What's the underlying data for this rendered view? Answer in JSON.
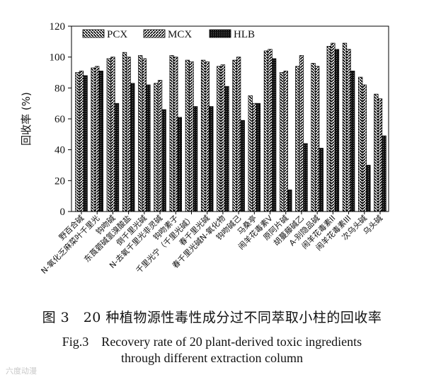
{
  "chart_data": {
    "type": "bar",
    "ylabel": "回收率 (%)",
    "ylim": [
      0,
      120
    ],
    "yticks": [
      0,
      20,
      40,
      60,
      80,
      100,
      120
    ],
    "legend_position": "top",
    "grid": false,
    "categories": [
      "野百合碱",
      "N-氧化乏麻菜叶千里光",
      "钩吻碱",
      "东莨菪碱氢溴酸盐",
      "倒千里光碱",
      "N-去氧千里光非灵碱",
      "钩吻素子",
      "千里光宁（千里光碱）",
      "春千里光碱",
      "春千里光碱N-氧化物",
      "钩吻碱己",
      "马桑亭",
      "闹羊花毒素V",
      "原阿片碱",
      "胡蔓藤碱乙",
      "A-别隐品碱",
      "闹羊花毒素II",
      "闹羊花毒素III",
      "次乌头碱",
      "乌头碱"
    ],
    "series": [
      {
        "name": "PCX",
        "values": [
          90,
          93,
          99,
          103,
          101,
          83,
          101,
          98,
          98,
          94,
          98,
          75,
          104,
          90,
          94,
          96,
          107,
          109,
          87,
          76
        ]
      },
      {
        "name": "MCX",
        "values": [
          91,
          94,
          100,
          100,
          99,
          85,
          100,
          97,
          97,
          95,
          100,
          70,
          105,
          91,
          101,
          94,
          109,
          105,
          82,
          73
        ]
      },
      {
        "name": "HLB",
        "values": [
          88,
          91,
          70,
          83,
          82,
          66,
          61,
          68,
          68,
          81,
          59,
          70,
          99,
          14,
          44,
          41,
          105,
          91,
          30,
          49
        ]
      }
    ]
  },
  "caption": {
    "zh": "图 3　20 种植物源性毒性成分过不同萃取小柱的回收率",
    "en_line1": "Fig.3　Recovery rate of 20 plant-derived toxic ingredients",
    "en_line2": "through different extraction column"
  },
  "watermark": "六度动漫"
}
